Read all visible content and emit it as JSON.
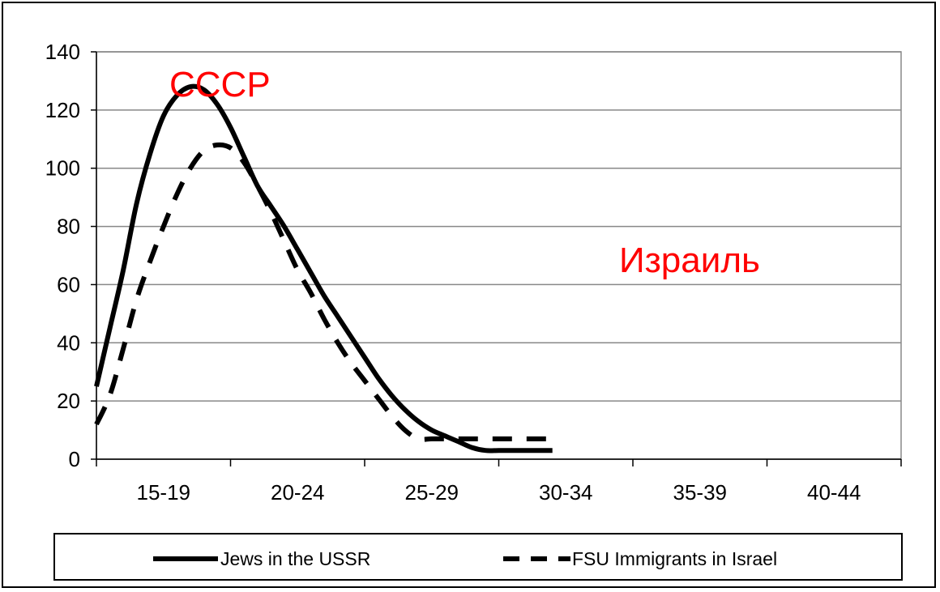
{
  "chart_data": {
    "type": "line",
    "categories": [
      "15-19",
      "20-24",
      "25-29",
      "30-34",
      "35-39",
      "40-44"
    ],
    "ylim": [
      0,
      140
    ],
    "yticks": [
      0,
      20,
      40,
      60,
      80,
      100,
      120,
      140
    ],
    "grid": true,
    "legend_position": "bottom",
    "series": [
      {
        "name": "Jews in the USSR",
        "style": "solid",
        "color": "#000000",
        "x": [
          15,
          15.5,
          16,
          16.5,
          17,
          17.5,
          18,
          18.5,
          19,
          19.5,
          20,
          20.5,
          21,
          21.5,
          22,
          22.5,
          23,
          23.5,
          24,
          24.5,
          25,
          25.5,
          26,
          26.5,
          27,
          27.5,
          28,
          28.5,
          29,
          29.5,
          30,
          30.5,
          31,
          31.5,
          32
        ],
        "values": [
          25,
          45,
          65,
          88,
          105,
          118,
          125,
          128,
          127,
          122,
          114,
          104,
          94,
          87,
          80,
          72,
          64,
          56,
          49,
          42,
          35,
          28,
          22,
          17,
          13,
          10,
          8,
          6,
          4,
          3,
          3,
          3,
          3,
          3,
          3
        ]
      },
      {
        "name": "FSU Immigrants in Israel",
        "style": "dashed",
        "color": "#000000",
        "x": [
          15,
          15.5,
          16,
          16.5,
          17,
          17.5,
          18,
          18.5,
          19,
          19.5,
          20,
          20.5,
          21,
          21.5,
          22,
          22.5,
          23,
          23.5,
          24,
          24.5,
          25,
          25.5,
          26,
          26.5,
          27,
          27.5,
          28,
          28.5,
          29,
          29.5,
          30,
          30.5,
          31,
          31.5,
          32
        ],
        "values": [
          12,
          22,
          38,
          55,
          68,
          80,
          91,
          100,
          106,
          108,
          107,
          102,
          94,
          85,
          75,
          65,
          57,
          48,
          40,
          33,
          27,
          21,
          15,
          10,
          7,
          7,
          7,
          7,
          7,
          7,
          7,
          7,
          7,
          7,
          7
        ]
      }
    ],
    "annotations": [
      {
        "text": "СССР",
        "color": "#ff0000"
      },
      {
        "text": "Израиль",
        "color": "#ff0000"
      }
    ]
  }
}
